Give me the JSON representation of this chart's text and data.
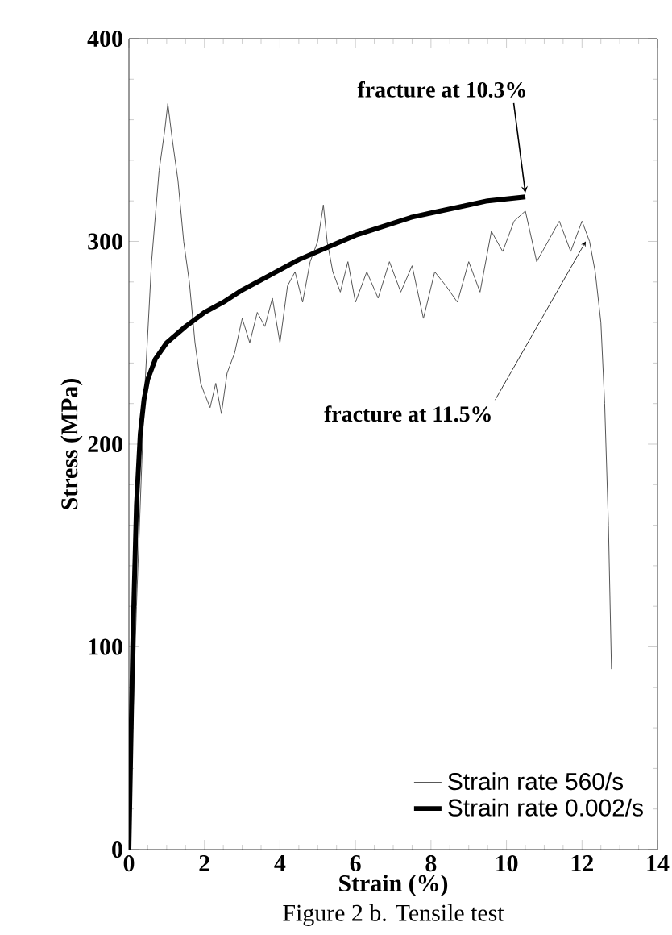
{
  "chart_data": {
    "type": "line",
    "xlabel": "Strain (%)",
    "ylabel": "Stress (MPa)",
    "xlim": [
      0,
      14
    ],
    "ylim": [
      0,
      400
    ],
    "xticks": [
      0,
      2,
      4,
      6,
      8,
      10,
      12,
      14
    ],
    "yticks": [
      0,
      100,
      200,
      300,
      400
    ],
    "legend": "bottom right",
    "grid": false,
    "series": [
      {
        "name": "Strain rate 560/s",
        "color": "#555555",
        "line_style": "solid",
        "x": [
          0,
          0.2,
          0.4,
          0.6,
          0.8,
          0.95,
          1.03,
          1.15,
          1.3,
          1.45,
          1.6,
          1.75,
          1.9,
          2.0,
          2.15,
          2.3,
          2.45,
          2.6,
          2.8,
          3.0,
          3.2,
          3.4,
          3.6,
          3.8,
          4.0,
          4.2,
          4.4,
          4.6,
          4.8,
          5.0,
          5.15,
          5.25,
          5.4,
          5.6,
          5.8,
          6.0,
          6.3,
          6.6,
          6.9,
          7.2,
          7.5,
          7.8,
          8.1,
          8.4,
          8.7,
          9.0,
          9.3,
          9.6,
          9.9,
          10.2,
          10.5,
          10.8,
          11.1,
          11.4,
          11.7,
          12.0,
          12.2,
          12.35,
          12.5,
          12.6,
          12.7,
          12.78
        ],
        "values": [
          0,
          120,
          220,
          290,
          335,
          355,
          368,
          350,
          330,
          300,
          280,
          250,
          230,
          225,
          218,
          230,
          215,
          235,
          245,
          262,
          250,
          265,
          258,
          272,
          250,
          278,
          285,
          270,
          290,
          300,
          318,
          300,
          285,
          275,
          290,
          270,
          285,
          272,
          290,
          275,
          288,
          262,
          285,
          278,
          270,
          290,
          275,
          305,
          295,
          310,
          315,
          290,
          300,
          310,
          295,
          310,
          300,
          285,
          260,
          220,
          160,
          89
        ]
      },
      {
        "name": "Strain rate 0.002/s",
        "color": "#000000",
        "line_style": "solid",
        "x": [
          0,
          0.1,
          0.2,
          0.3,
          0.4,
          0.5,
          0.7,
          1.0,
          1.5,
          2.0,
          2.5,
          3.0,
          3.5,
          4.0,
          4.5,
          5.0,
          5.5,
          6.0,
          6.5,
          7.0,
          7.5,
          8.0,
          8.5,
          9.0,
          9.5,
          10.0,
          10.5
        ],
        "values": [
          0,
          100,
          170,
          205,
          222,
          232,
          242,
          250,
          258,
          265,
          270,
          276,
          281,
          286,
          291,
          295,
          299,
          303,
          306,
          309,
          312,
          314,
          316,
          318,
          320,
          321,
          322
        ]
      }
    ],
    "annotations": [
      {
        "text": "fracture at 10.3%",
        "x": 10.5,
        "y": 322
      },
      {
        "text": "fracture at 11.5%",
        "x": 12.1,
        "y": 300
      },
      "Figure 2 b. Tensile test"
    ]
  }
}
